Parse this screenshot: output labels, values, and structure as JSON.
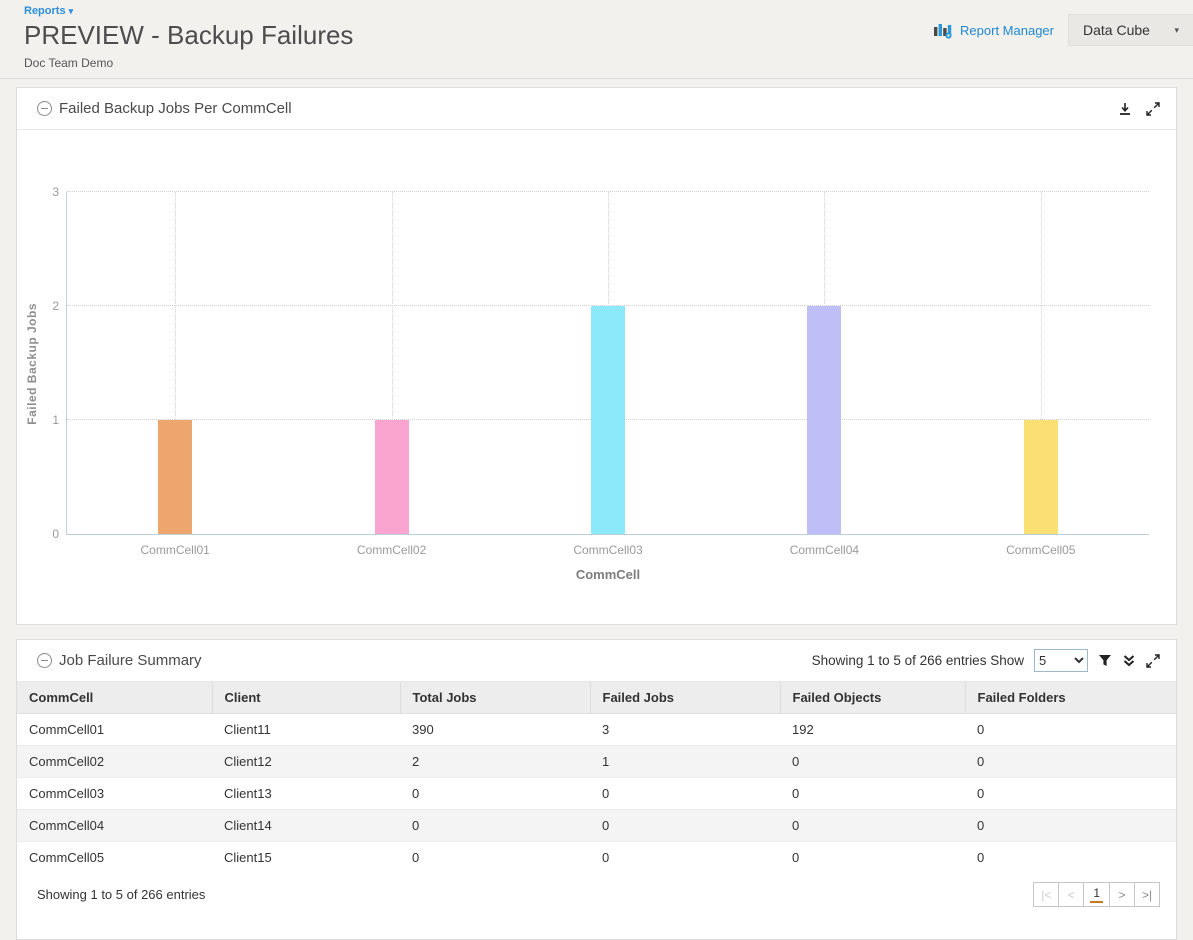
{
  "header": {
    "breadcrumb_label": "Reports",
    "breadcrumb_caret": "▾",
    "title": "PREVIEW - Backup Failures",
    "subtitle": "Doc Team Demo",
    "report_manager_label": "Report Manager",
    "data_cube_label": "Data Cube",
    "data_cube_caret": "▾"
  },
  "colors": {
    "accent_blue": "#1f87d2",
    "page_background": "#f2f1ee",
    "panel_border": "#dcdcdc",
    "grid_dotted": "#cfcfcf",
    "axis_line": "#b9cdde",
    "pagination_active_underline": "#c8781e"
  },
  "chart_panel": {
    "title": "Failed Backup Jobs Per CommCell"
  },
  "chart_data": {
    "type": "bar",
    "title": "Failed Backup Jobs Per CommCell",
    "categories": [
      "CommCell01",
      "CommCell02",
      "CommCell03",
      "CommCell04",
      "CommCell05"
    ],
    "values": [
      1,
      1,
      2,
      2,
      1
    ],
    "bar_colors": [
      "#EDA66E",
      "#FAA5D0",
      "#8BE9FA",
      "#BFBFF8",
      "#FADF73"
    ],
    "xlabel": "CommCell",
    "ylabel": "Failed Backup Jobs",
    "ylim": [
      0,
      3
    ],
    "yticks": [
      0,
      1,
      2,
      3
    ],
    "grid": "dotted horizontal and vertical",
    "legend": "none"
  },
  "table_panel": {
    "title": "Job Failure Summary",
    "header_showing_text": "Showing 1 to 5 of 266 entries",
    "show_label": "Show",
    "page_size_selected": "5",
    "columns": [
      "CommCell",
      "Client",
      "Total Jobs",
      "Failed Jobs",
      "Failed Objects",
      "Failed Folders"
    ],
    "rows": [
      [
        "CommCell01",
        "Client11",
        "390",
        "3",
        "192",
        "0"
      ],
      [
        "CommCell02",
        "Client12",
        "2",
        "1",
        "0",
        "0"
      ],
      [
        "CommCell03",
        "Client13",
        "0",
        "0",
        "0",
        "0"
      ],
      [
        "CommCell04",
        "Client14",
        "0",
        "0",
        "0",
        "0"
      ],
      [
        "CommCell05",
        "Client15",
        "0",
        "0",
        "0",
        "0"
      ]
    ],
    "footer_showing_text": "Showing 1 to 5 of 266 entries",
    "pagination": {
      "first": "|<",
      "prev": "<",
      "current": "1",
      "next": ">",
      "last": ">|"
    }
  }
}
